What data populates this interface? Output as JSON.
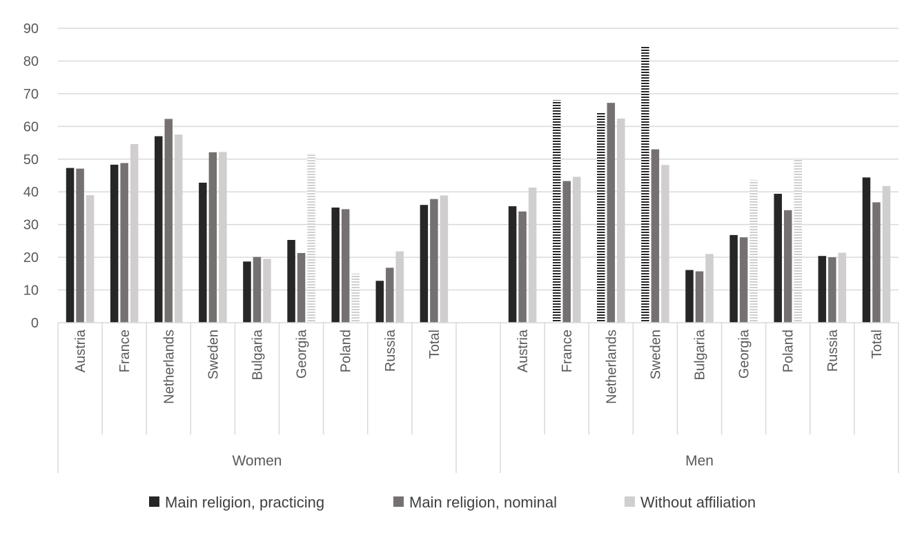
{
  "chart_data": {
    "type": "bar",
    "title": "",
    "xlabel": "",
    "ylabel": "",
    "ylim": [
      0,
      90
    ],
    "yticks": [
      "0",
      "10",
      "20",
      "30",
      "40",
      "50",
      "60",
      "70",
      "80",
      "90"
    ],
    "grid": true,
    "legend_position": "bottom",
    "groups": [
      {
        "name": "Women",
        "categories": [
          "Austria",
          "France",
          "Netherlands",
          "Sweden",
          "Bulgaria",
          "Georgia",
          "Poland",
          "Russia",
          "Total"
        ]
      },
      {
        "name": "Men",
        "categories": [
          "Austria",
          "France",
          "Netherlands",
          "Sweden",
          "Bulgaria",
          "Georgia",
          "Poland",
          "Russia",
          "Total"
        ]
      }
    ],
    "series": [
      {
        "name": "Main religion, practicing",
        "color": "#262626",
        "values": [
          47.3,
          48.3,
          57.0,
          42.8,
          18.7,
          25.3,
          35.2,
          12.8,
          36.0,
          35.6,
          68.0,
          64.2,
          84.5,
          16.1,
          26.8,
          39.4,
          20.4,
          44.4
        ],
        "hatched": [
          false,
          false,
          false,
          false,
          false,
          false,
          false,
          false,
          false,
          false,
          true,
          true,
          true,
          false,
          false,
          false,
          false,
          false
        ]
      },
      {
        "name": "Main religion, nominal",
        "color": "#767171",
        "values": [
          47.1,
          48.8,
          62.3,
          52.1,
          20.1,
          21.3,
          34.7,
          16.8,
          37.8,
          34.0,
          43.3,
          67.2,
          53.0,
          15.7,
          26.1,
          34.4,
          20.0,
          36.8
        ],
        "hatched": [
          false,
          false,
          false,
          false,
          false,
          false,
          false,
          false,
          false,
          false,
          false,
          false,
          false,
          false,
          false,
          false,
          false,
          false
        ]
      },
      {
        "name": "Without affiliation",
        "color": "#d0cece",
        "values": [
          39.0,
          54.6,
          57.5,
          52.2,
          19.5,
          51.4,
          15.0,
          21.8,
          38.9,
          41.3,
          44.6,
          62.4,
          48.2,
          21.0,
          43.6,
          49.9,
          21.4,
          41.8
        ],
        "hatched": [
          false,
          false,
          false,
          false,
          false,
          true,
          true,
          false,
          false,
          false,
          false,
          false,
          false,
          false,
          true,
          true,
          false,
          false
        ]
      }
    ]
  }
}
